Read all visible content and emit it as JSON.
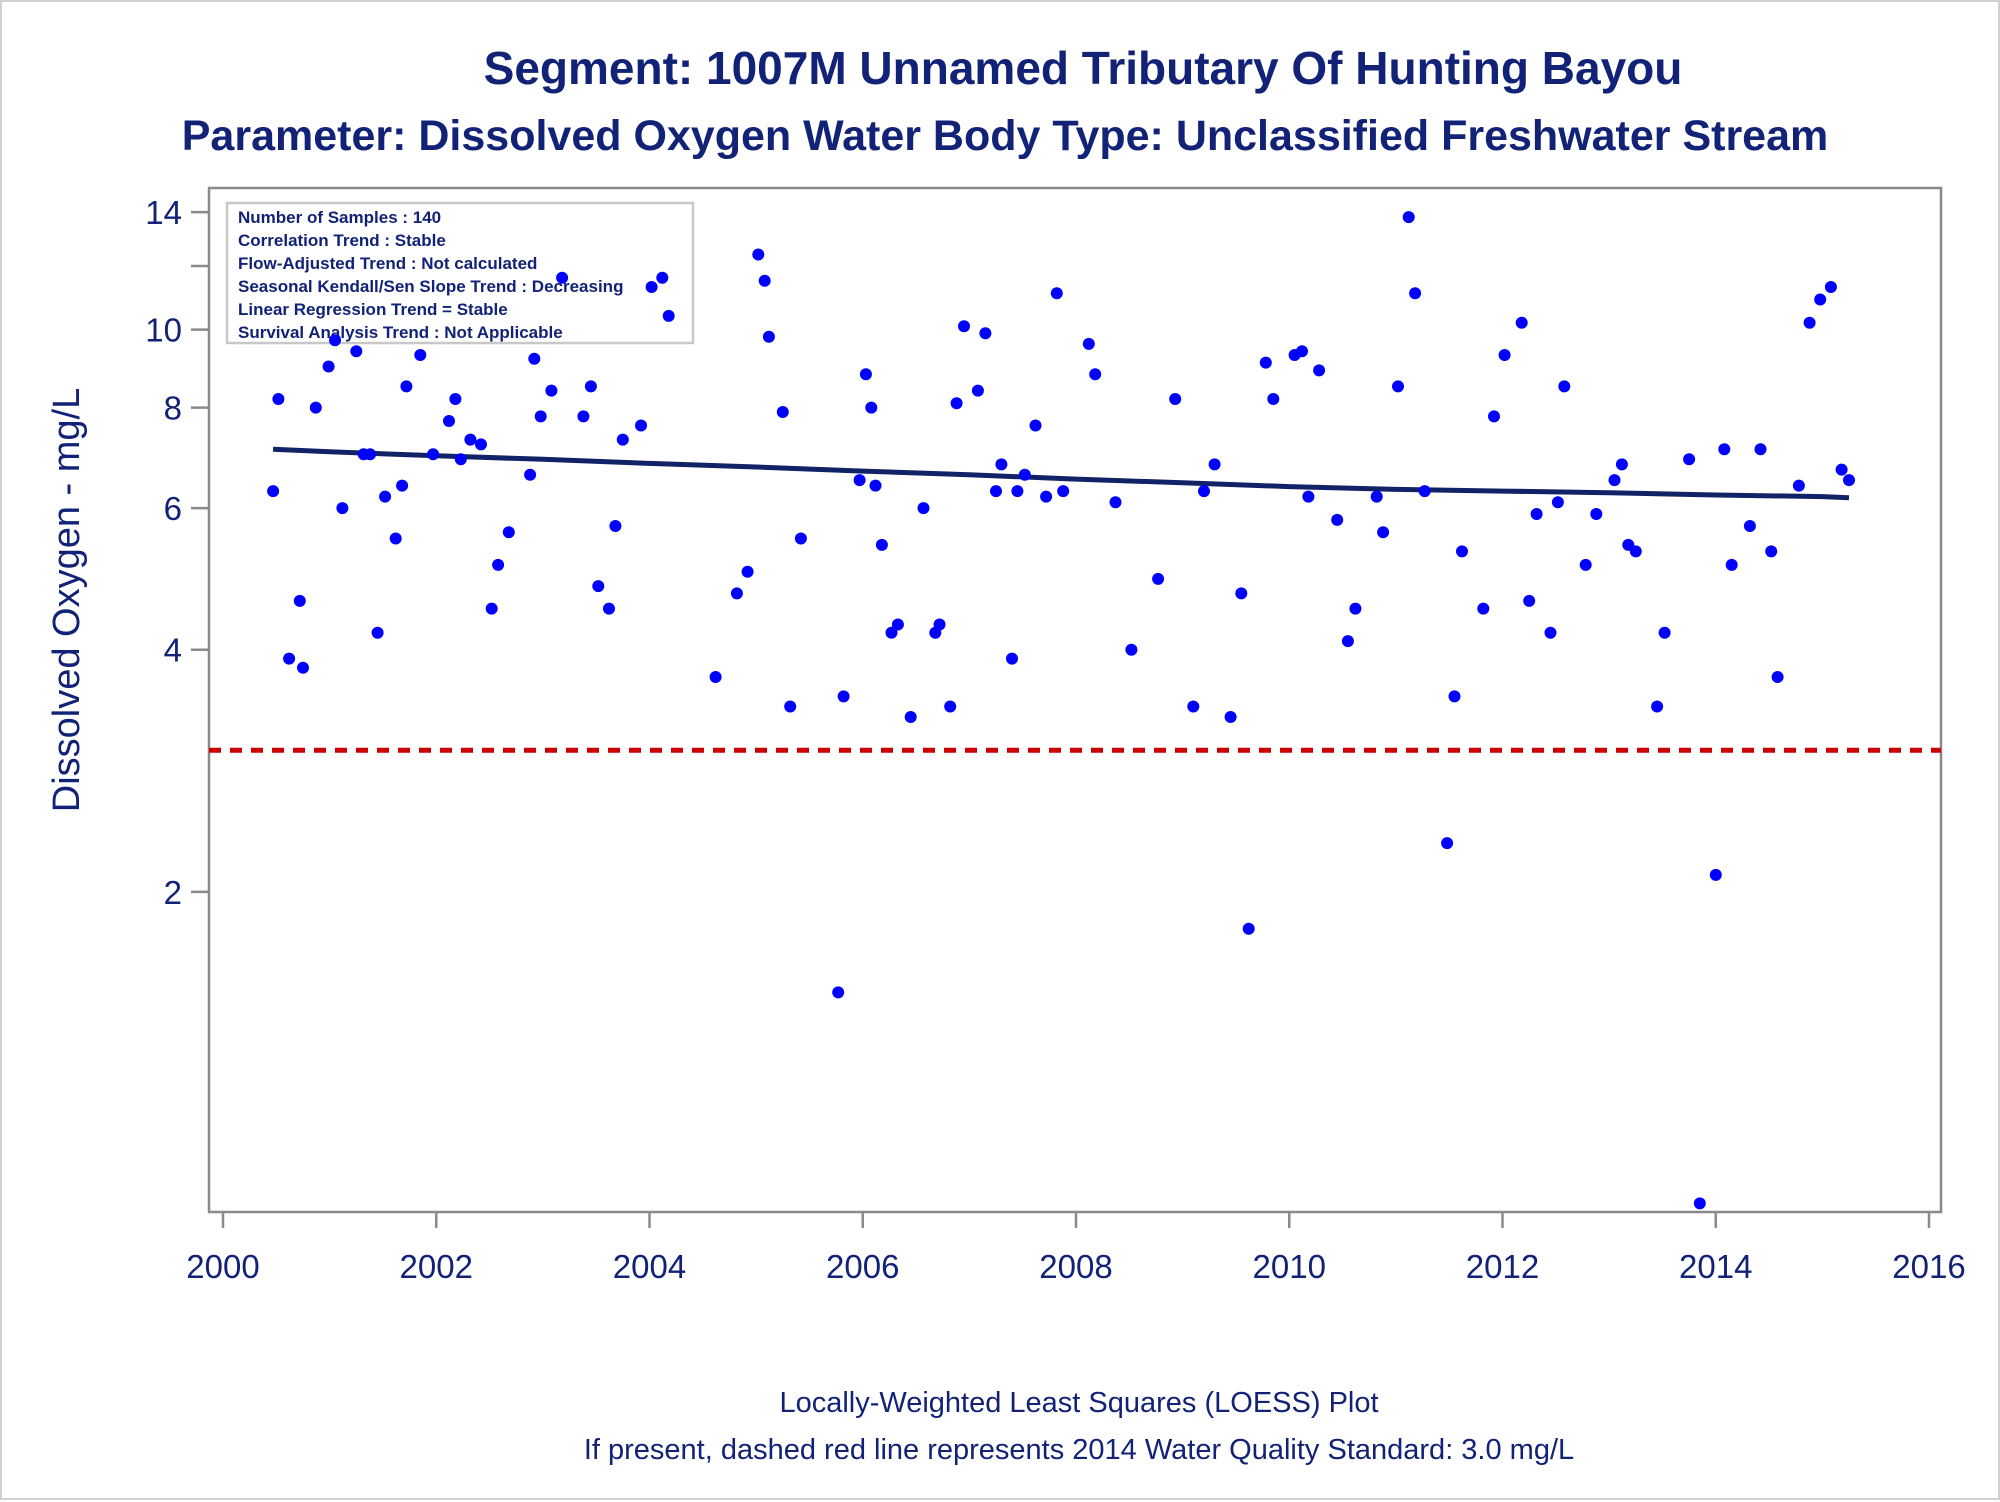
{
  "chart_data": {
    "type": "scatter",
    "title": "Segment: 1007M  Unnamed Tributary Of Hunting Bayou",
    "subtitle": "Parameter: Dissolved Oxygen   Water Body Type: Unclassified Freshwater Stream",
    "xlabel": "",
    "ylabel": "Dissolved Oxygen - mg/L",
    "y_scale": "log",
    "xlim": [
      2000,
      2016
    ],
    "ylim": [
      0.8,
      15
    ],
    "x_ticks": [
      2000,
      2002,
      2004,
      2006,
      2008,
      2010,
      2012,
      2014,
      2016
    ],
    "x_tick_labels": [
      "2000",
      "2002",
      "2004",
      "2006",
      "2008",
      "2010",
      "2012",
      "2014",
      "2016"
    ],
    "y_ticks": [
      2,
      4,
      6,
      8,
      10,
      14
    ],
    "y_tick_labels": [
      "2",
      "4",
      "6",
      "8",
      "10",
      "14"
    ],
    "y_minor_ticks": [
      12
    ],
    "grid": false,
    "inset_legend_position": "top-left",
    "inset_lines": [
      "Number of Samples : 140",
      "Correlation Trend : Stable",
      "Flow-Adjusted Trend : Not calculated",
      "Seasonal Kendall/Sen Slope Trend : Decreasing",
      "Linear Regression Trend = Stable",
      "Survival Analysis Trend : Not Applicable"
    ],
    "footnotes": [
      "Locally-Weighted Least Squares (LOESS) Plot",
      "If present, dashed red line represents 2014 Water Quality Standard: 3.0 mg/L"
    ],
    "standard_line": {
      "y": 3.0,
      "color": "#cc0000",
      "style": "dashed"
    },
    "colors": {
      "points": "#0000ff",
      "trend": "#112266",
      "text": "#112277",
      "axis": "#8a8a8a"
    },
    "series": [
      {
        "type": "scatter",
        "points": [
          [
            2000.47,
            6.3
          ],
          [
            2000.52,
            8.2
          ],
          [
            2000.62,
            3.9
          ],
          [
            2000.72,
            4.6
          ],
          [
            2000.75,
            3.8
          ],
          [
            2000.87,
            8.0
          ],
          [
            2000.99,
            9.0
          ],
          [
            2001.05,
            9.7
          ],
          [
            2001.12,
            6.0
          ],
          [
            2001.25,
            9.4
          ],
          [
            2001.32,
            7.0
          ],
          [
            2001.38,
            7.0
          ],
          [
            2001.45,
            4.2
          ],
          [
            2001.52,
            6.2
          ],
          [
            2001.62,
            5.5
          ],
          [
            2001.68,
            6.4
          ],
          [
            2001.72,
            8.5
          ],
          [
            2001.85,
            9.3
          ],
          [
            2001.97,
            7.0
          ],
          [
            2002.12,
            7.7
          ],
          [
            2002.18,
            8.2
          ],
          [
            2002.23,
            6.9
          ],
          [
            2002.32,
            7.3
          ],
          [
            2002.42,
            7.2
          ],
          [
            2002.52,
            4.5
          ],
          [
            2002.58,
            5.1
          ],
          [
            2002.68,
            5.6
          ],
          [
            2002.88,
            6.6
          ],
          [
            2002.92,
            9.2
          ],
          [
            2002.98,
            7.8
          ],
          [
            2003.08,
            8.4
          ],
          [
            2003.18,
            11.6
          ],
          [
            2003.38,
            7.8
          ],
          [
            2003.45,
            8.5
          ],
          [
            2003.52,
            4.8
          ],
          [
            2003.62,
            4.5
          ],
          [
            2003.68,
            5.7
          ],
          [
            2003.75,
            7.3
          ],
          [
            2003.92,
            7.6
          ],
          [
            2004.02,
            11.3
          ],
          [
            2004.12,
            11.6
          ],
          [
            2004.18,
            10.4
          ],
          [
            2004.62,
            3.7
          ],
          [
            2004.82,
            4.7
          ],
          [
            2004.92,
            5.0
          ],
          [
            2005.02,
            12.4
          ],
          [
            2005.08,
            11.5
          ],
          [
            2005.12,
            9.8
          ],
          [
            2005.25,
            7.9
          ],
          [
            2005.32,
            3.4
          ],
          [
            2005.42,
            5.5
          ],
          [
            2005.77,
            1.5
          ],
          [
            2005.82,
            3.5
          ],
          [
            2005.97,
            6.5
          ],
          [
            2006.03,
            8.8
          ],
          [
            2006.08,
            8.0
          ],
          [
            2006.12,
            6.4
          ],
          [
            2006.18,
            5.4
          ],
          [
            2006.27,
            4.2
          ],
          [
            2006.33,
            4.3
          ],
          [
            2006.45,
            3.3
          ],
          [
            2006.57,
            6.0
          ],
          [
            2006.68,
            4.2
          ],
          [
            2006.72,
            4.3
          ],
          [
            2006.82,
            3.4
          ],
          [
            2006.88,
            8.1
          ],
          [
            2006.95,
            10.1
          ],
          [
            2007.08,
            8.4
          ],
          [
            2007.15,
            9.9
          ],
          [
            2007.25,
            6.3
          ],
          [
            2007.3,
            6.8
          ],
          [
            2007.4,
            3.9
          ],
          [
            2007.45,
            6.3
          ],
          [
            2007.52,
            6.6
          ],
          [
            2007.62,
            7.6
          ],
          [
            2007.72,
            6.2
          ],
          [
            2007.82,
            11.1
          ],
          [
            2007.88,
            6.3
          ],
          [
            2008.12,
            9.6
          ],
          [
            2008.18,
            8.8
          ],
          [
            2008.37,
            6.1
          ],
          [
            2008.52,
            4.0
          ],
          [
            2008.77,
            4.9
          ],
          [
            2008.93,
            8.2
          ],
          [
            2009.1,
            3.4
          ],
          [
            2009.2,
            6.3
          ],
          [
            2009.3,
            6.8
          ],
          [
            2009.45,
            3.3
          ],
          [
            2009.55,
            4.7
          ],
          [
            2009.62,
            1.8
          ],
          [
            2009.78,
            9.1
          ],
          [
            2009.85,
            8.2
          ],
          [
            2010.05,
            9.3
          ],
          [
            2010.12,
            9.4
          ],
          [
            2010.18,
            6.2
          ],
          [
            2010.28,
            8.9
          ],
          [
            2010.45,
            5.8
          ],
          [
            2010.55,
            4.1
          ],
          [
            2010.62,
            4.5
          ],
          [
            2010.82,
            6.2
          ],
          [
            2010.88,
            5.6
          ],
          [
            2011.02,
            8.5
          ],
          [
            2011.12,
            13.8
          ],
          [
            2011.18,
            11.1
          ],
          [
            2011.27,
            6.3
          ],
          [
            2011.48,
            2.3
          ],
          [
            2011.55,
            3.5
          ],
          [
            2011.62,
            5.3
          ],
          [
            2011.82,
            4.5
          ],
          [
            2011.92,
            7.8
          ],
          [
            2012.02,
            9.3
          ],
          [
            2012.18,
            10.2
          ],
          [
            2012.25,
            4.6
          ],
          [
            2012.32,
            5.9
          ],
          [
            2012.45,
            4.2
          ],
          [
            2012.52,
            6.1
          ],
          [
            2012.58,
            8.5
          ],
          [
            2012.78,
            5.1
          ],
          [
            2012.88,
            5.9
          ],
          [
            2013.05,
            6.5
          ],
          [
            2013.12,
            6.8
          ],
          [
            2013.18,
            5.4
          ],
          [
            2013.25,
            5.3
          ],
          [
            2013.45,
            3.4
          ],
          [
            2013.52,
            4.2
          ],
          [
            2013.75,
            6.9
          ],
          [
            2013.85,
            0.82
          ],
          [
            2014.0,
            2.1
          ],
          [
            2014.08,
            7.1
          ],
          [
            2014.15,
            5.1
          ],
          [
            2014.32,
            5.7
          ],
          [
            2014.42,
            7.1
          ],
          [
            2014.52,
            5.3
          ],
          [
            2014.58,
            3.7
          ],
          [
            2014.78,
            6.4
          ],
          [
            2014.88,
            10.2
          ],
          [
            2014.98,
            10.9
          ],
          [
            2015.08,
            11.3
          ],
          [
            2015.18,
            6.7
          ],
          [
            2015.25,
            6.5
          ]
        ]
      },
      {
        "type": "line",
        "points": [
          [
            2000.47,
            7.1
          ],
          [
            2001.0,
            7.05
          ],
          [
            2002.0,
            6.97
          ],
          [
            2003.0,
            6.9
          ],
          [
            2004.0,
            6.82
          ],
          [
            2005.0,
            6.75
          ],
          [
            2006.0,
            6.67
          ],
          [
            2007.0,
            6.6
          ],
          [
            2008.0,
            6.52
          ],
          [
            2009.0,
            6.45
          ],
          [
            2010.0,
            6.38
          ],
          [
            2011.0,
            6.33
          ],
          [
            2012.0,
            6.3
          ],
          [
            2013.0,
            6.27
          ],
          [
            2014.0,
            6.23
          ],
          [
            2015.0,
            6.2
          ],
          [
            2015.25,
            6.18
          ]
        ]
      }
    ]
  }
}
